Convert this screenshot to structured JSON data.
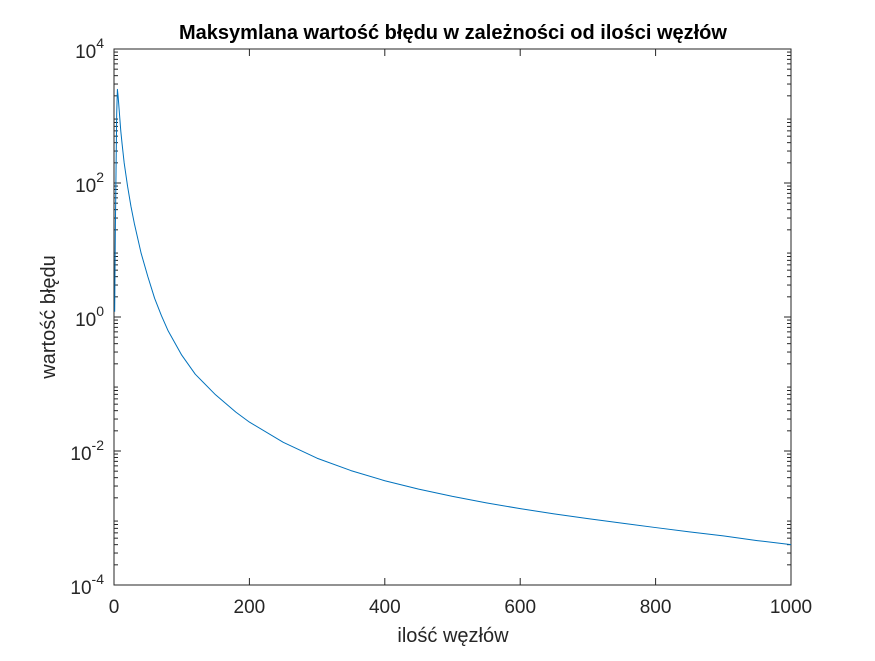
{
  "chart_data": {
    "type": "line",
    "title": "Maksymlana wartość błędu w zależności od ilości węzłów",
    "xlabel": "ilość węzłów",
    "ylabel": "wartość błędu",
    "xlim": [
      0,
      1000
    ],
    "ylim": [
      0.0001,
      10000
    ],
    "y_scale": "log",
    "grid": false,
    "x_ticks": [
      {
        "value": 0,
        "label": "0"
      },
      {
        "value": 200,
        "label": "200"
      },
      {
        "value": 400,
        "label": "400"
      },
      {
        "value": 600,
        "label": "600"
      },
      {
        "value": 800,
        "label": "800"
      },
      {
        "value": 1000,
        "label": "1000"
      }
    ],
    "y_ticks": [
      {
        "value": 0.0001,
        "base": "10",
        "exp": "-4"
      },
      {
        "value": 0.01,
        "base": "10",
        "exp": "-2"
      },
      {
        "value": 1,
        "base": "10",
        "exp": "0"
      },
      {
        "value": 100,
        "base": "10",
        "exp": "2"
      },
      {
        "value": 10000,
        "base": "10",
        "exp": "4"
      }
    ],
    "series": [
      {
        "color": "#0072bd",
        "x": [
          1,
          2,
          3,
          4,
          5,
          6,
          7,
          8,
          10,
          12,
          15,
          20,
          25,
          30,
          40,
          50,
          60,
          70,
          80,
          100,
          120,
          150,
          180,
          200,
          250,
          300,
          350,
          400,
          450,
          500,
          550,
          600,
          650,
          700,
          750,
          800,
          850,
          900,
          950,
          1000
        ],
        "y": [
          1.2,
          20,
          150,
          1100,
          2500,
          2000,
          1500,
          1100,
          600,
          380,
          200,
          90,
          45,
          25,
          9,
          4,
          1.9,
          1.05,
          0.62,
          0.27,
          0.14,
          0.069,
          0.038,
          0.027,
          0.0135,
          0.0078,
          0.0051,
          0.0036,
          0.0027,
          0.0021,
          0.00168,
          0.00138,
          0.00115,
          0.00098,
          0.00084,
          0.00072,
          0.00062,
          0.00054,
          0.00046,
          0.0004
        ]
      }
    ]
  }
}
